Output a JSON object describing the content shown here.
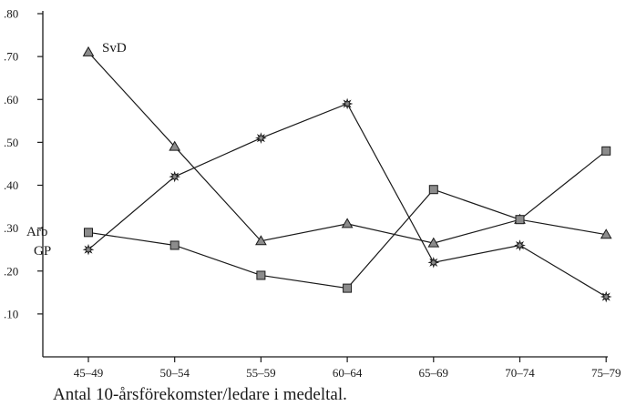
{
  "caption": "Antal 10-årsförekomster/ledare i medeltal.",
  "chart_data": {
    "type": "line",
    "title": "",
    "xlabel": "",
    "ylabel": "",
    "categories": [
      "45–49",
      "50–54",
      "55–59",
      "60–64",
      "65–69",
      "70–74",
      "75–79"
    ],
    "ylim": [
      0,
      0.8
    ],
    "yticks": [
      0.1,
      0.2,
      0.3,
      0.4,
      0.5,
      0.6,
      0.7,
      0.8
    ],
    "ytick_labels": [
      ".10",
      ".20",
      ".30",
      ".40",
      ".50",
      ".60",
      ".70",
      ".80"
    ],
    "grid": false,
    "series": [
      {
        "name": "SvD",
        "marker": "triangle",
        "values": [
          0.71,
          0.49,
          0.27,
          0.31,
          0.265,
          0.32,
          0.285
        ]
      },
      {
        "name": "Arb",
        "marker": "square",
        "values": [
          0.29,
          0.26,
          0.19,
          0.16,
          0.39,
          0.32,
          0.48
        ]
      },
      {
        "name": "GP",
        "marker": "star",
        "values": [
          0.25,
          0.42,
          0.51,
          0.59,
          0.22,
          0.26,
          0.14
        ]
      }
    ]
  }
}
